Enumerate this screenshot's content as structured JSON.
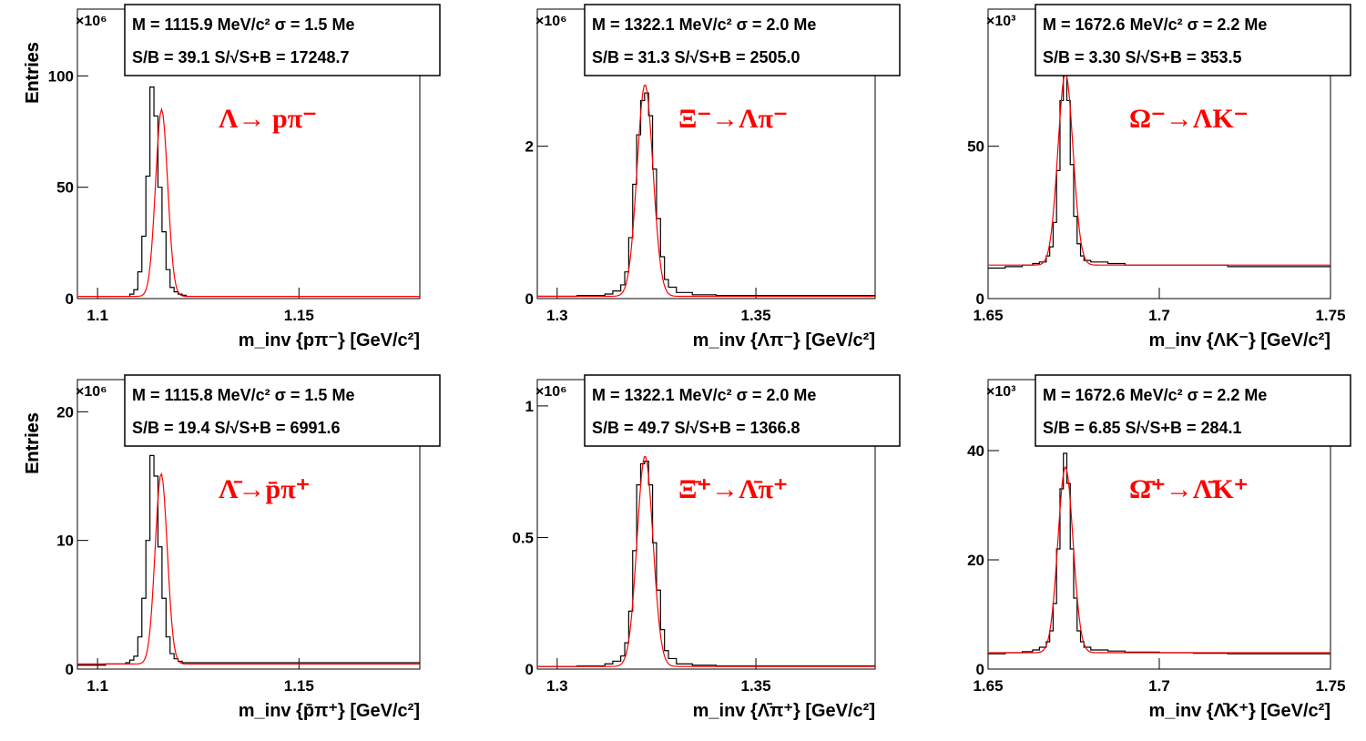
{
  "figure": {
    "ylabel_all": "Entries"
  },
  "chart_data": [
    {
      "type": "line",
      "exponent": "×10⁶",
      "xlim": [
        1.095,
        1.18
      ],
      "ylim": [
        0,
        130
      ],
      "xticks": [
        1.1,
        1.15
      ],
      "xtick_labels": [
        "1.1",
        "1.15"
      ],
      "yticks": [
        0,
        50,
        100
      ],
      "ytick_labels": [
        "0",
        "50",
        "100"
      ],
      "xlabel": "m_inv {pπ⁻} [GeV/c²]",
      "ylabel": "Entries",
      "stats": {
        "line1": "M = 1115.9 MeV/c² σ = 1.5 Me",
        "line2": "S/B = 39.1   S/√S+B = 17248.7"
      },
      "decay_label": "Λ→ pπ⁻",
      "peak": {
        "mean": 1.1159,
        "sigma": 0.0015,
        "height": 84,
        "baseline": 1
      },
      "series": [
        {
          "name": "data",
          "x": [
            1.095,
            1.102,
            1.107,
            1.108,
            1.109,
            1.11,
            1.111,
            1.112,
            1.113,
            1.114,
            1.115,
            1.116,
            1.117,
            1.118,
            1.119,
            1.12,
            1.121,
            1.122,
            1.124,
            1.13,
            1.14,
            1.15,
            1.16,
            1.17
          ],
          "y": [
            1,
            1,
            1,
            2,
            4,
            12,
            28,
            55,
            95,
            82,
            50,
            30,
            13,
            5,
            3,
            2,
            1.5,
            1,
            1,
            1,
            1,
            1,
            1,
            1
          ]
        },
        {
          "name": "fit"
        }
      ]
    },
    {
      "type": "line",
      "exponent": "×10⁶",
      "xlim": [
        1.295,
        1.38
      ],
      "ylim": [
        0,
        3.8
      ],
      "xticks": [
        1.3,
        1.35
      ],
      "xtick_labels": [
        "1.3",
        "1.35"
      ],
      "yticks": [
        0,
        2
      ],
      "ytick_labels": [
        "0",
        "2"
      ],
      "xlabel": "m_inv {Λπ⁻} [GeV/c²]",
      "ylabel": "Entries",
      "stats": {
        "line1": "M = 1322.1 MeV/c² σ = 2.0 Me",
        "line2": "S/B = 31.3   S/√S+B = 2505.0"
      },
      "decay_label": "Ξ⁻→Λπ⁻",
      "peak": {
        "mean": 1.3221,
        "sigma": 0.002,
        "height": 2.78,
        "baseline": 0.03
      },
      "series": [
        {
          "name": "data",
          "x": [
            1.295,
            1.305,
            1.312,
            1.314,
            1.316,
            1.317,
            1.318,
            1.319,
            1.32,
            1.321,
            1.322,
            1.323,
            1.324,
            1.325,
            1.326,
            1.327,
            1.328,
            1.33,
            1.334,
            1.34,
            1.35,
            1.36,
            1.37
          ],
          "y": [
            0.03,
            0.04,
            0.06,
            0.1,
            0.18,
            0.35,
            0.8,
            1.5,
            2.15,
            2.6,
            2.7,
            2.4,
            1.7,
            1.05,
            0.55,
            0.25,
            0.15,
            0.08,
            0.05,
            0.04,
            0.04,
            0.04,
            0.04
          ]
        },
        {
          "name": "fit"
        }
      ]
    },
    {
      "type": "line",
      "exponent": "×10³",
      "xlim": [
        1.65,
        1.75
      ],
      "ylim": [
        0,
        95
      ],
      "xticks": [
        1.65,
        1.7,
        1.75
      ],
      "xtick_labels": [
        "1.65",
        "1.7",
        "1.75"
      ],
      "yticks": [
        0,
        50
      ],
      "ytick_labels": [
        "0",
        "50"
      ],
      "xlabel": "m_inv {ΛK⁻} [GeV/c²]",
      "ylabel": "Entries",
      "stats": {
        "line1": "M = 1672.6 MeV/c² σ = 2.2 Me",
        "line2": "S/B = 3.30   S/√S+B = 353.5"
      },
      "decay_label": "Ω⁻→ΛK⁻",
      "peak": {
        "mean": 1.6726,
        "sigma": 0.0022,
        "height": 63,
        "baseline": 11
      },
      "series": [
        {
          "name": "data",
          "x": [
            1.65,
            1.655,
            1.66,
            1.663,
            1.665,
            1.667,
            1.668,
            1.669,
            1.67,
            1.671,
            1.672,
            1.673,
            1.674,
            1.675,
            1.676,
            1.677,
            1.678,
            1.68,
            1.685,
            1.69,
            1.7,
            1.71,
            1.72,
            1.73,
            1.74
          ],
          "y": [
            10,
            10.5,
            11,
            11.5,
            12,
            14,
            17,
            25,
            42,
            65,
            76,
            65,
            44,
            27,
            18,
            14,
            12.5,
            12,
            11.5,
            11,
            11,
            11,
            10.5,
            10.5,
            10.5
          ]
        },
        {
          "name": "fit"
        }
      ]
    },
    {
      "type": "line",
      "exponent": "×10⁶",
      "xlim": [
        1.095,
        1.18
      ],
      "ylim": [
        0,
        22.5
      ],
      "xticks": [
        1.1,
        1.15
      ],
      "xtick_labels": [
        "1.1",
        "1.15"
      ],
      "yticks": [
        0,
        10,
        20
      ],
      "ytick_labels": [
        "0",
        "10",
        "20"
      ],
      "xlabel": "m_inv {p̄π⁺} [GeV/c²]",
      "ylabel": "Entries",
      "stats": {
        "line1": "M = 1115.8 MeV/c² σ = 1.5 Me",
        "line2": "S/B = 19.4   S/√S+B = 6991.6"
      },
      "decay_label": "Λ̄→p̄π⁺",
      "peak": {
        "mean": 1.1158,
        "sigma": 0.0015,
        "height": 14.8,
        "baseline": 0.4
      },
      "series": [
        {
          "name": "data",
          "x": [
            1.095,
            1.102,
            1.107,
            1.108,
            1.109,
            1.11,
            1.111,
            1.112,
            1.113,
            1.114,
            1.115,
            1.116,
            1.117,
            1.118,
            1.119,
            1.12,
            1.121,
            1.122,
            1.124,
            1.13,
            1.14,
            1.15,
            1.16,
            1.17
          ],
          "y": [
            0.3,
            0.4,
            0.5,
            0.7,
            1.0,
            2.5,
            5.5,
            10,
            16.6,
            15,
            9.5,
            5.5,
            2.5,
            1.2,
            0.8,
            0.6,
            0.5,
            0.5,
            0.5,
            0.5,
            0.5,
            0.5,
            0.5,
            0.5
          ]
        },
        {
          "name": "fit"
        }
      ]
    },
    {
      "type": "line",
      "exponent": "×10⁶",
      "xlim": [
        1.295,
        1.38
      ],
      "ylim": [
        0,
        1.1
      ],
      "xticks": [
        1.3,
        1.35
      ],
      "xtick_labels": [
        "1.3",
        "1.35"
      ],
      "yticks": [
        0,
        0.5,
        1
      ],
      "ytick_labels": [
        "0",
        "0.5",
        "1"
      ],
      "xlabel": "m_inv {Λ̄π⁺} [GeV/c²]",
      "ylabel": "Entries",
      "stats": {
        "line1": "M = 1322.1 MeV/c² σ = 2.0 Me",
        "line2": "S/B = 49.7   S/√S+B = 1366.8"
      },
      "decay_label": "Ξ̄⁺→Λ̄π⁺",
      "peak": {
        "mean": 1.3221,
        "sigma": 0.002,
        "height": 0.8,
        "baseline": 0.01
      },
      "series": [
        {
          "name": "data",
          "x": [
            1.295,
            1.305,
            1.312,
            1.314,
            1.316,
            1.317,
            1.318,
            1.319,
            1.32,
            1.321,
            1.322,
            1.323,
            1.324,
            1.325,
            1.326,
            1.327,
            1.328,
            1.33,
            1.334,
            1.34,
            1.35,
            1.36,
            1.37
          ],
          "y": [
            0.01,
            0.012,
            0.02,
            0.03,
            0.05,
            0.1,
            0.22,
            0.45,
            0.7,
            0.78,
            0.79,
            0.7,
            0.48,
            0.3,
            0.15,
            0.07,
            0.04,
            0.02,
            0.015,
            0.012,
            0.012,
            0.012,
            0.012
          ]
        },
        {
          "name": "fit"
        }
      ]
    },
    {
      "type": "line",
      "exponent": "×10³",
      "xlim": [
        1.65,
        1.75
      ],
      "ylim": [
        0,
        53
      ],
      "xticks": [
        1.65,
        1.7,
        1.75
      ],
      "xtick_labels": [
        "1.65",
        "1.7",
        "1.75"
      ],
      "yticks": [
        0,
        20,
        40
      ],
      "ytick_labels": [
        "0",
        "20",
        "40"
      ],
      "xlabel": "m_inv {Λ̄K⁺} [GeV/c²]",
      "ylabel": "Entries",
      "stats": {
        "line1": "M = 1672.6 MeV/c² σ = 2.2 Me",
        "line2": "S/B = 6.85   S/√S+B = 284.1"
      },
      "decay_label": "Ω̄⁺→Λ̄K⁺",
      "peak": {
        "mean": 1.6726,
        "sigma": 0.0022,
        "height": 34,
        "baseline": 3
      },
      "series": [
        {
          "name": "data",
          "x": [
            1.65,
            1.655,
            1.66,
            1.663,
            1.665,
            1.667,
            1.668,
            1.669,
            1.67,
            1.671,
            1.672,
            1.673,
            1.674,
            1.675,
            1.676,
            1.677,
            1.678,
            1.68,
            1.685,
            1.69,
            1.7,
            1.71,
            1.72,
            1.73,
            1.74
          ],
          "y": [
            2.8,
            3,
            3.2,
            3.5,
            4,
            5,
            7,
            12,
            22,
            33,
            39.5,
            34,
            22,
            13,
            7,
            5,
            4,
            3.5,
            3.3,
            3.1,
            3,
            2.9,
            2.8,
            2.8,
            2.8
          ]
        },
        {
          "name": "fit"
        }
      ]
    }
  ]
}
